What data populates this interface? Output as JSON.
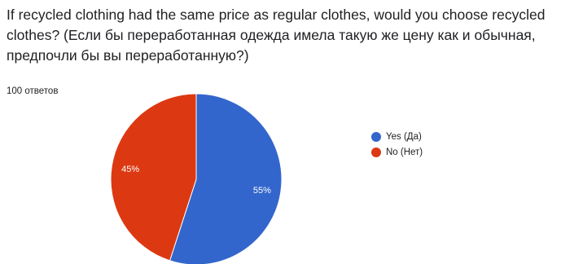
{
  "question": {
    "text": "If recycled clothing had the same price as regular clothes, would you choose recycled clothes? (Если бы переработанная одежда имела такую же цену как и обычная, предпочли бы вы переработанную?)"
  },
  "response_count": "100 ответов",
  "chart_data": {
    "type": "pie",
    "title": "",
    "slices": [
      {
        "label": "Yes (Да)",
        "value": 55,
        "display": "55%",
        "color": "#3366cc"
      },
      {
        "label": "No (Нет)",
        "value": 45,
        "display": "45%",
        "color": "#dc3912"
      }
    ],
    "legend_position": "right"
  }
}
